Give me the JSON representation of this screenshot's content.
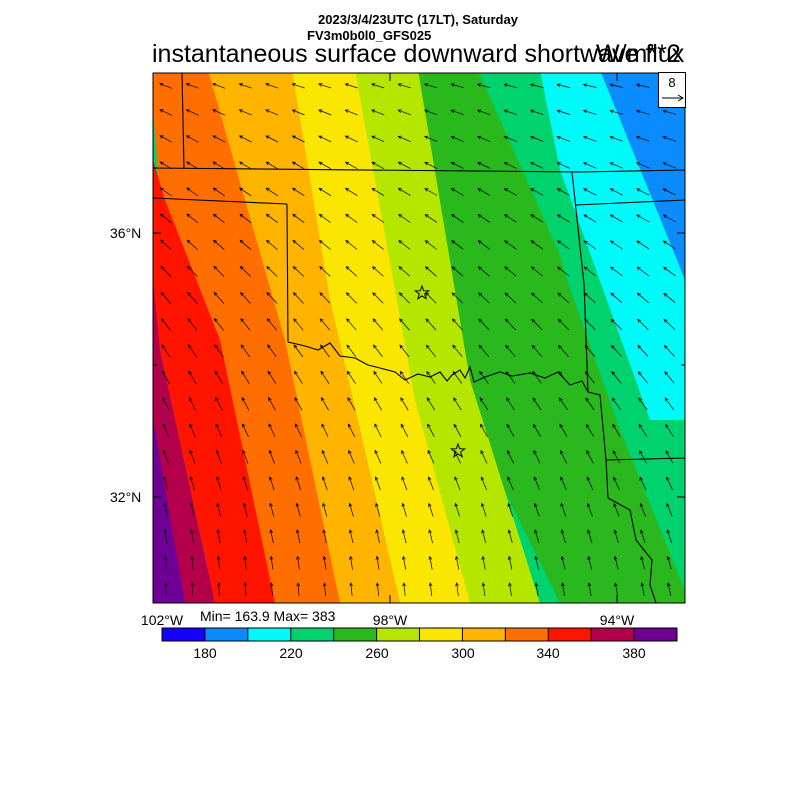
{
  "header": {
    "datetime": "2023/3/4/23UTC (17LT), Saturday",
    "model": "FV3m0b0l0_GFS025",
    "title": "instantaneous surface downward shortwave flux",
    "units": "W/m**2"
  },
  "stats": {
    "text": "Min= 163.9 Max= 383"
  },
  "axes": {
    "lon_labels": [
      "102°W",
      "98°W",
      "94°W"
    ],
    "lat_labels": [
      "36°N",
      "32°N"
    ]
  },
  "reference_vector": {
    "label": "8"
  },
  "colorbar": {
    "colors": [
      "#1400ff",
      "#0a8cff",
      "#00fafa",
      "#00d26e",
      "#2ab81e",
      "#b4e600",
      "#fae600",
      "#ffb400",
      "#ff6e00",
      "#ff1400",
      "#b4004a",
      "#6e0096"
    ],
    "tick_labels": [
      "180",
      "220",
      "260",
      "300",
      "340",
      "380"
    ]
  },
  "markers": {
    "count": 2,
    "symbol": "star"
  }
}
